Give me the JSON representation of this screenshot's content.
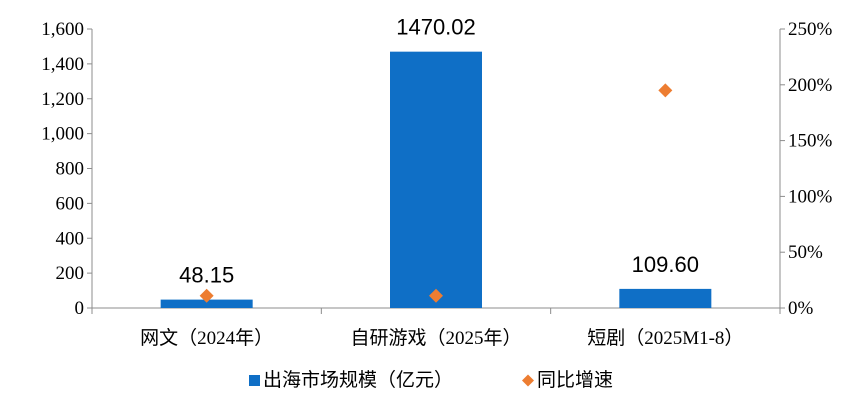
{
  "chart_data": {
    "type": "bar",
    "categories": [
      "网文（2024年）",
      "自研游戏（2025年）",
      "短剧（2025M1-8）"
    ],
    "series": [
      {
        "name": "出海市场规模（亿元）",
        "type": "bar",
        "axis": "left",
        "values": [
          48.15,
          1470.02,
          109.6
        ],
        "data_labels": [
          "48.15",
          "1470.02",
          "109.60"
        ],
        "color": "#0F6FC6"
      },
      {
        "name": "同比增速",
        "type": "scatter",
        "axis": "right",
        "marker": "diamond",
        "values": [
          0.11,
          0.11,
          1.95
        ],
        "color": "#ED7D31"
      }
    ],
    "y_left": {
      "range": [
        0,
        1600
      ],
      "ticks": [
        0,
        200,
        400,
        600,
        800,
        1000,
        1200,
        1400,
        1600
      ],
      "tick_labels": [
        "0",
        "200",
        "400",
        "600",
        "800",
        "1,000",
        "1,200",
        "1,400",
        "1,600"
      ]
    },
    "y_right": {
      "range": [
        0,
        2.5
      ],
      "ticks": [
        0,
        0.5,
        1,
        1.5,
        2,
        2.5
      ],
      "tick_labels": [
        "0%",
        "50%",
        "100%",
        "150%",
        "200%",
        "250%"
      ]
    },
    "grid": false,
    "legend": {
      "position": "bottom"
    }
  }
}
